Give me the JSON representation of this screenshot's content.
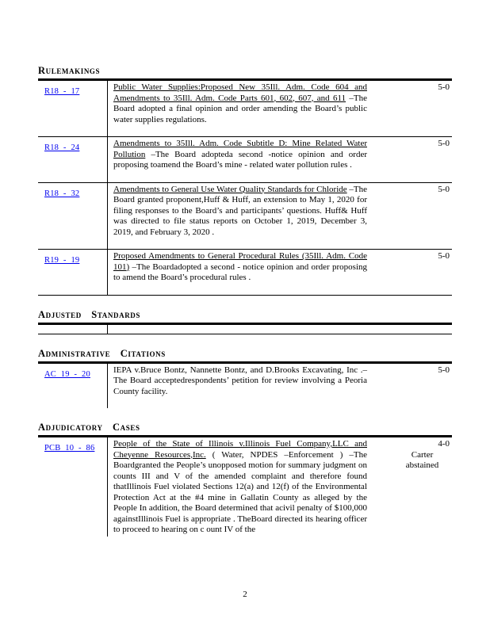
{
  "document": {
    "page_number": "2",
    "link_color": "#0000EE",
    "sections": [
      {
        "heading": "Rulemakings",
        "rows": [
          {
            "case_no": "R18 - 17",
            "title": "Public Water Supplies:Proposed New 35Ill. Adm. Code 604 and Amendments to 35Ill. Adm. Code Parts 601, 602, 607, and 611",
            "body": "–The Board adopted a final opinion and order amending the Board’s public water supplies regulations.",
            "vote": "5-0"
          },
          {
            "case_no": "R18 - 24",
            "title": "Amendments to 35Ill. Adm. Code Subtitle D: Mine Related Water Pollution",
            "body": "–The Board adopteda second -notice opinion and order proposing toamend the Board’s mine - related water pollution rules .",
            "vote": "5-0"
          },
          {
            "case_no": "R18 - 32",
            "title": "Amendments to General Use Water Quality Standards for Chloride",
            "body": "–The Board granted proponent,Huff & Huff, an extension to May 1, 2020 for filing responses to the Board’s and participants’ questions. Huff& Huff was directed to file status reports on October 1, 2019, December 3, 2019, and February 3, 2020 .",
            "vote": "5-0"
          },
          {
            "case_no": "R19 - 19",
            "title": "Proposed Amendments to General Procedural Rules (35Ill. Adm. Code 101)",
            "body": "–The Boardadopted a second - notice opinion and order proposing to amend the Board’s procedural rules .",
            "vote": "5-0"
          }
        ]
      },
      {
        "heading": "Adjusted Standards"
      },
      {
        "heading": "Administrative Citations",
        "rows": [
          {
            "case_no": "AC 19 - 20",
            "title": "",
            "body": "IEPA v.Bruce Bontz, Nannette Bontz, and D.Brooks Excavating, Inc .–The Board acceptedrespondents’ petition for review involving a Peoria County facility.",
            "vote": "5-0"
          }
        ]
      },
      {
        "heading": "Adjudicatory Cases",
        "rows": [
          {
            "case_no": "PCB 10 - 86",
            "title": "People of the State of Illinois v.Illinois Fuel Company,LLC and Cheyenne Resources,Inc.",
            "body": "( Water, NPDES –Enforcement ) –The Boardgranted the People’s unopposed motion for summary judgment on counts III and V of the amended complaint and therefore found thatIllinois Fuel violated Sections 12(a) and 12(f) of the Environmental Protection Act at the #4 mine in Gallatin County as alleged by the People In addition, the Board determined that acivil penalty of $100,000 againstIllinois Fuel is appropriate . TheBoard directed its hearing officer to proceed to hearing on c ount IV of the",
            "vote": "4-0",
            "note": "Carter abstained"
          }
        ]
      }
    ]
  }
}
